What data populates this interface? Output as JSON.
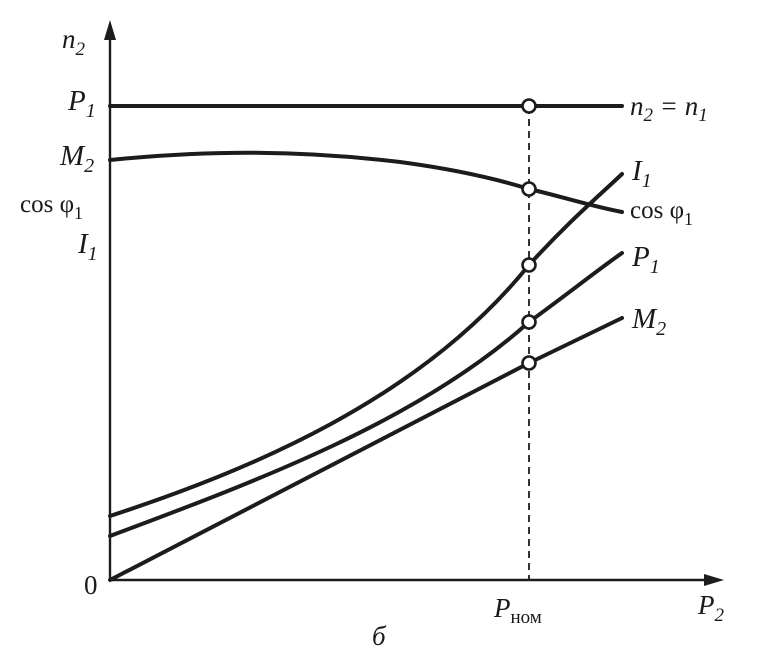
{
  "axes": {
    "y_label": {
      "main": "n",
      "sub": "2"
    },
    "x_label": {
      "main": "P",
      "sub": "2"
    },
    "origin": "0",
    "x_tick": {
      "main": "P",
      "sub": "ном"
    }
  },
  "y_axis_labels": [
    {
      "id": "p1",
      "main": "P",
      "sub": "1",
      "italic": true
    },
    {
      "id": "m2",
      "main": "M",
      "sub": "2",
      "italic": true
    },
    {
      "id": "cos",
      "main": "cos φ",
      "sub": "1",
      "italic": false
    },
    {
      "id": "i1",
      "main": "I",
      "sub": "1",
      "italic": true
    }
  ],
  "curve_labels": [
    {
      "id": "n2",
      "text": "n₂ = n₁"
    },
    {
      "id": "cos",
      "main": "cos φ",
      "sub": "1",
      "italic": false
    },
    {
      "id": "i1",
      "main": "I",
      "sub": "1",
      "italic": true
    },
    {
      "id": "p1",
      "main": "P",
      "sub": "1",
      "italic": true
    },
    {
      "id": "m2",
      "main": "M",
      "sub": "2",
      "italic": true
    }
  ],
  "caption": "б",
  "colors": {
    "ink": "#1c1c1c",
    "background": "#ffffff",
    "marker_fill": "#ffffff"
  }
}
